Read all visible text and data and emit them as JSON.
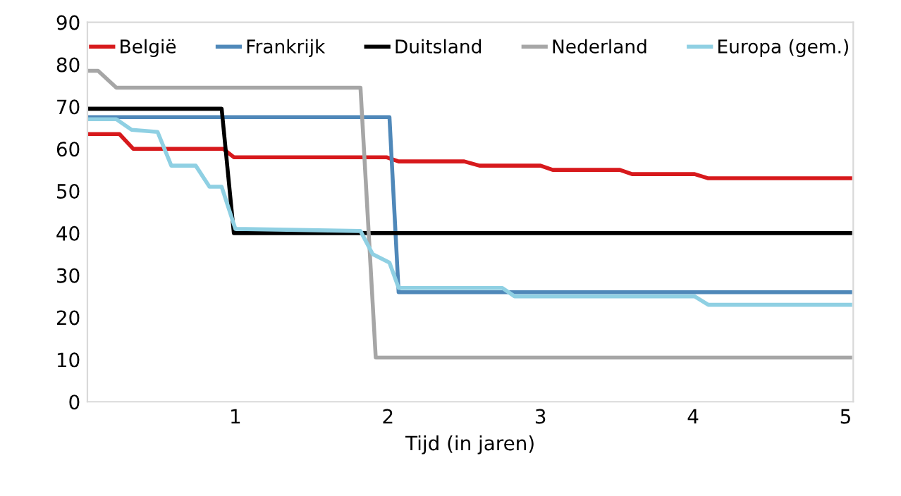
{
  "chart_data": {
    "type": "line",
    "xlabel": "Tijd (in jaren)",
    "xlim": [
      0.03,
      5.05
    ],
    "xticks": [
      1,
      2,
      3,
      4,
      5
    ],
    "ylim": [
      0,
      90
    ],
    "yticks": [
      0,
      10,
      20,
      30,
      40,
      50,
      60,
      70,
      80,
      90
    ],
    "grid": false,
    "legend": "top",
    "line_style": "solid",
    "marker": "none",
    "series": [
      {
        "name": "België",
        "color": "#d7191c",
        "x": [
          0.03,
          0.24,
          0.33,
          0.92,
          0.99,
          1.99,
          2.07,
          2.5,
          2.6,
          3.0,
          3.08,
          3.52,
          3.6,
          4.01,
          4.1,
          5.03
        ],
        "values": [
          63.5,
          63.5,
          60,
          60,
          58,
          58,
          57,
          57,
          56,
          56,
          55,
          55,
          54,
          54,
          53,
          53
        ]
      },
      {
        "name": "Frankrijk",
        "color": "#4f88b9",
        "x": [
          0.03,
          2.01,
          2.07,
          5.03
        ],
        "values": [
          67.5,
          67.5,
          26,
          26
        ]
      },
      {
        "name": "Duitsland",
        "color": "#000000",
        "x": [
          0.03,
          0.91,
          0.99,
          5.03
        ],
        "values": [
          69.5,
          69.5,
          40,
          40
        ]
      },
      {
        "name": "Nederland",
        "color": "#a6a6a6",
        "x": [
          0.03,
          0.1,
          0.22,
          1.82,
          1.92,
          5.03
        ],
        "values": [
          78.5,
          78.5,
          74.5,
          74.5,
          10.5,
          10.5
        ]
      },
      {
        "name": "Europa (gem.)",
        "color": "#8fd0e3",
        "x": [
          0.03,
          0.22,
          0.32,
          0.49,
          0.58,
          0.74,
          0.83,
          0.91,
          1.0,
          1.82,
          1.9,
          2.01,
          2.07,
          2.49,
          2.75,
          2.83,
          4.01,
          4.1,
          5.03
        ],
        "values": [
          67,
          67,
          64.5,
          64,
          56,
          56,
          51,
          51,
          41,
          40.5,
          35,
          33,
          27,
          27,
          27,
          25,
          25,
          23,
          23
        ]
      }
    ]
  }
}
